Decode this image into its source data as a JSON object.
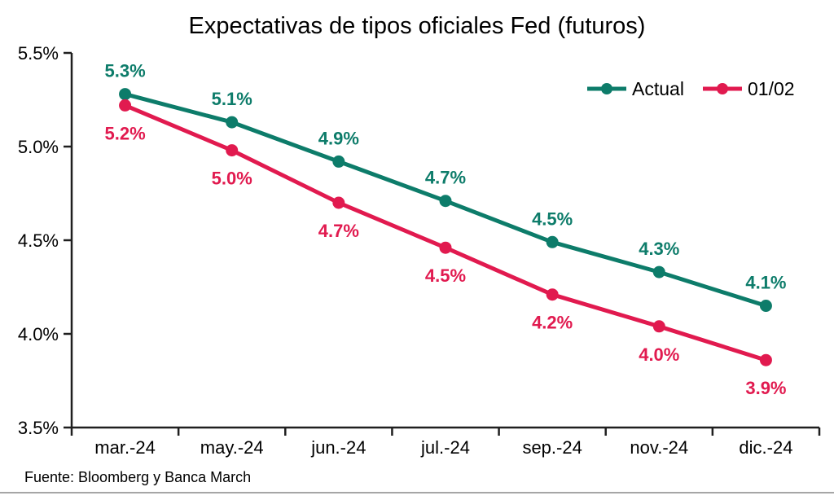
{
  "chart_data": {
    "type": "line",
    "title": "Expectativas de tipos oficiales Fed (futuros)",
    "categories": [
      "mar.-24",
      "may.-24",
      "jun.-24",
      "jul.-24",
      "sep.-24",
      "nov.-24",
      "dic.-24"
    ],
    "series": [
      {
        "name": "Actual",
        "color": "#0d7c6a",
        "values": [
          5.28,
          5.13,
          4.92,
          4.71,
          4.49,
          4.33,
          4.15
        ],
        "labels": [
          "5.3%",
          "5.1%",
          "4.9%",
          "4.7%",
          "4.5%",
          "4.3%",
          "4.1%"
        ],
        "label_position": "above"
      },
      {
        "name": "01/02",
        "color": "#e11a4f",
        "values": [
          5.22,
          4.98,
          4.7,
          4.46,
          4.21,
          4.04,
          3.86
        ],
        "labels": [
          "5.2%",
          "5.0%",
          "4.7%",
          "4.5%",
          "4.2%",
          "4.0%",
          "3.9%"
        ],
        "label_position": "below"
      }
    ],
    "ylim": [
      3.5,
      5.5
    ],
    "y_tick_values": [
      3.5,
      4.0,
      4.5,
      5.0,
      5.5
    ],
    "y_tick_labels": [
      "3.5%",
      "4.0%",
      "4.5%",
      "5.0%",
      "5.5%"
    ],
    "legend_position": "top-right",
    "grid": false,
    "axis_color": "#1f1f1f"
  },
  "footer": {
    "source": "Fuente: Bloomberg y Banca March"
  }
}
